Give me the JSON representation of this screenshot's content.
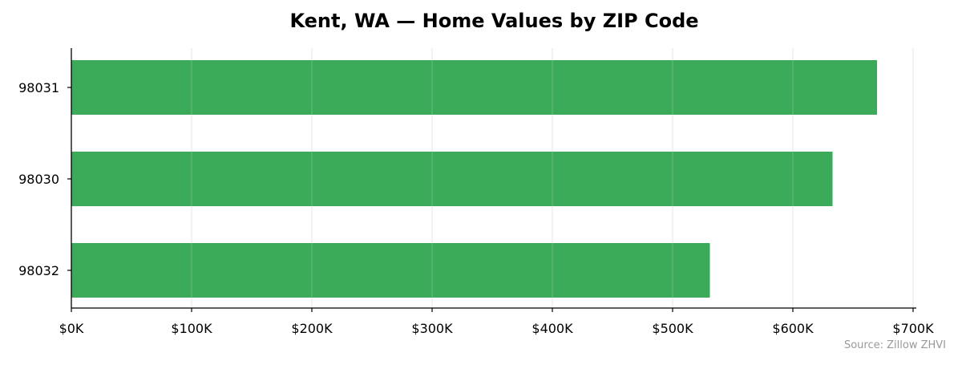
{
  "chart_data": {
    "type": "bar",
    "orientation": "horizontal",
    "title": "Kent, WA — Home Values by ZIP Code",
    "xlabel": "",
    "ylabel": "",
    "categories": [
      "98031",
      "98030",
      "98032"
    ],
    "values": [
      670000,
      633000,
      531000
    ],
    "xlim": [
      0,
      700000
    ],
    "xticks": [
      0,
      100000,
      200000,
      300000,
      400000,
      500000,
      600000,
      700000
    ],
    "xtick_labels": [
      "$0K",
      "$100K",
      "$200K",
      "$300K",
      "$400K",
      "$500K",
      "$600K",
      "$700K"
    ],
    "grid": "x-axis vertical gridlines",
    "bar_color": "#36a854",
    "gridline_color": "#e6e6e6",
    "source": "Source: Zillow ZHVI"
  }
}
